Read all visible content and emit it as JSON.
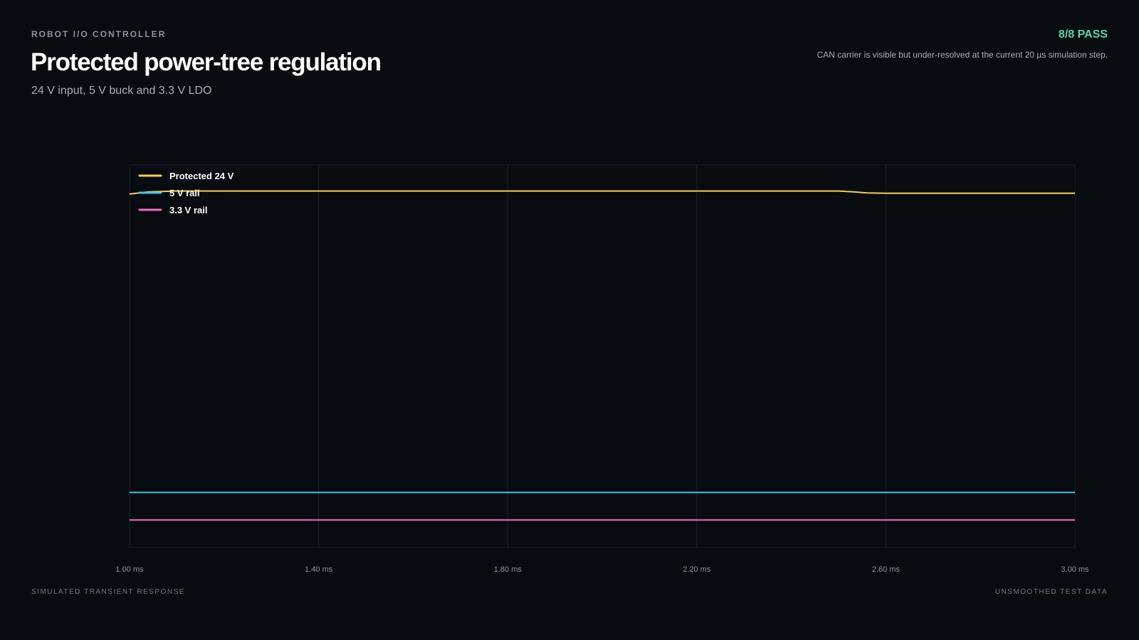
{
  "header": {
    "eyebrow": "ROBOT I/O CONTROLLER",
    "title": "Protected power-tree regulation",
    "subtitle": "24 V input, 5 V buck and 3.3 V LDO",
    "status": "8/8 PASS",
    "note": "CAN carrier is visible but under-resolved at the current 20 µs simulation step."
  },
  "footer": {
    "left": "SIMULATED TRANSIENT RESPONSE",
    "right": "UNSMOOTHED TEST DATA"
  },
  "chart_data": {
    "type": "line",
    "title": "",
    "xlabel": "",
    "ylabel": "",
    "x_unit": "ms",
    "xlim": [
      1.0,
      3.0
    ],
    "ylim": [
      0,
      25
    ],
    "x_ticks": [
      1.0,
      1.4,
      1.8,
      2.2,
      2.6,
      3.0
    ],
    "x_tick_labels": [
      "1.00 ms",
      "1.40 ms",
      "1.80 ms",
      "2.20 ms",
      "2.60 ms",
      "3.00 ms"
    ],
    "grid": true,
    "legend_position": "top-left",
    "series": [
      {
        "name": "Protected 24 V",
        "color": "#f5cd4e",
        "x": [
          1.0,
          1.04,
          1.1,
          1.3,
          2.5,
          2.53,
          2.56,
          2.6,
          2.7,
          3.0
        ],
        "y": [
          23.1,
          23.25,
          23.3,
          23.3,
          23.3,
          23.25,
          23.18,
          23.15,
          23.15,
          23.15
        ]
      },
      {
        "name": "5 V rail",
        "color": "#4cc4e8",
        "x": [
          1.0,
          2.5,
          3.0
        ],
        "y": [
          3.6,
          3.6,
          3.6
        ]
      },
      {
        "name": "3.3 V rail",
        "color": "#f06aba",
        "x": [
          1.0,
          2.5,
          3.0
        ],
        "y": [
          1.8,
          1.8,
          1.8
        ]
      }
    ]
  }
}
